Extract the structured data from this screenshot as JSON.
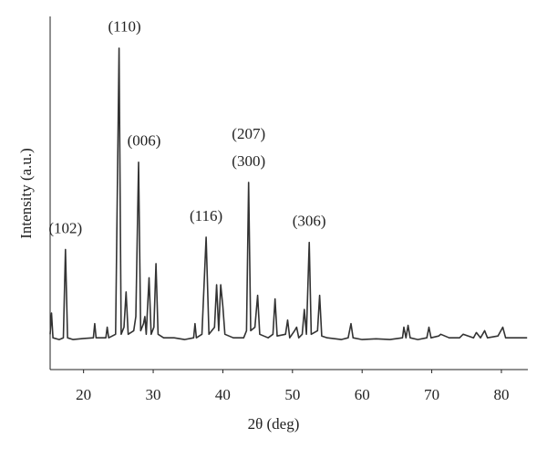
{
  "chart_data": {
    "type": "line",
    "xlabel": "2θ (deg)",
    "ylabel": "Intensity (a.u.)",
    "x": [
      15.2,
      15.4,
      15.6,
      16.5,
      17.1,
      17.4,
      17.7,
      18.5,
      20,
      21.4,
      21.6,
      21.8,
      23.2,
      23.4,
      23.6,
      24.6,
      25.1,
      25.4,
      25.8,
      26.1,
      26.4,
      27.2,
      27.5,
      27.9,
      28.2,
      28.6,
      28.8,
      29.0,
      29.4,
      29.7,
      30.1,
      30.4,
      30.7,
      31.5,
      33,
      34.5,
      35.8,
      36.0,
      36.2,
      37.0,
      37.6,
      38.0,
      38.8,
      39.1,
      39.4,
      39.7,
      40.0,
      40.3,
      41.5,
      43,
      43.4,
      43.7,
      44.0,
      44.6,
      45.0,
      45.3,
      46.5,
      47.2,
      47.5,
      47.8,
      49.0,
      49.3,
      49.6,
      50.3,
      50.6,
      50.9,
      51.4,
      51.7,
      52.0,
      52.4,
      52.7,
      53.6,
      53.9,
      54.2,
      55,
      57,
      58,
      58.4,
      58.7,
      60,
      62,
      64,
      65.8,
      66.0,
      66.3,
      66.6,
      66.9,
      68,
      69.3,
      69.6,
      69.9,
      71,
      71.3,
      72.5,
      74,
      74.5,
      76,
      76.4,
      77,
      77.6,
      78,
      79.5,
      80.2,
      80.6,
      82,
      83.7
    ],
    "values": [
      10,
      16,
      9,
      8.5,
      9,
      34,
      9,
      8.5,
      8.8,
      9,
      13,
      9,
      9,
      12,
      9,
      10,
      91,
      10,
      12,
      22,
      10,
      11,
      15,
      58.7,
      11,
      13,
      15,
      10,
      26,
      10,
      12,
      30,
      10,
      9,
      9,
      8.5,
      9,
      13,
      9,
      10,
      37.5,
      10,
      12,
      24,
      11,
      24,
      18,
      10,
      9,
      9,
      11,
      53,
      11,
      12,
      21,
      10,
      9,
      10,
      20,
      9.5,
      10,
      14,
      9,
      11,
      12,
      9,
      10,
      17,
      10,
      36,
      10,
      11,
      21,
      9.5,
      9,
      8.5,
      9,
      13,
      9,
      8.5,
      8.7,
      8.5,
      9,
      12,
      9,
      12.5,
      9,
      8.5,
      9,
      12,
      9,
      9.5,
      10,
      9,
      9,
      10,
      9,
      10.5,
      9,
      11,
      9,
      9.5,
      12,
      9,
      9,
      9
    ],
    "color": "#333333",
    "xlim": [
      15.2,
      83.8
    ],
    "xticks": [
      20,
      30,
      40,
      50,
      60,
      70,
      80
    ],
    "ylim": [
      0,
      100
    ],
    "annotations": [
      {
        "text": "(102)",
        "x": 17.4
      },
      {
        "text": "(110)",
        "x": 25.1
      },
      {
        "text": "(006)",
        "x": 27.9
      },
      {
        "text": "(116)",
        "x": 37.6
      },
      {
        "text": "(300)",
        "x": 43.7
      },
      {
        "text": "(207)",
        "x": 43.7
      },
      {
        "text": "(306)",
        "x": 52.4
      }
    ]
  }
}
